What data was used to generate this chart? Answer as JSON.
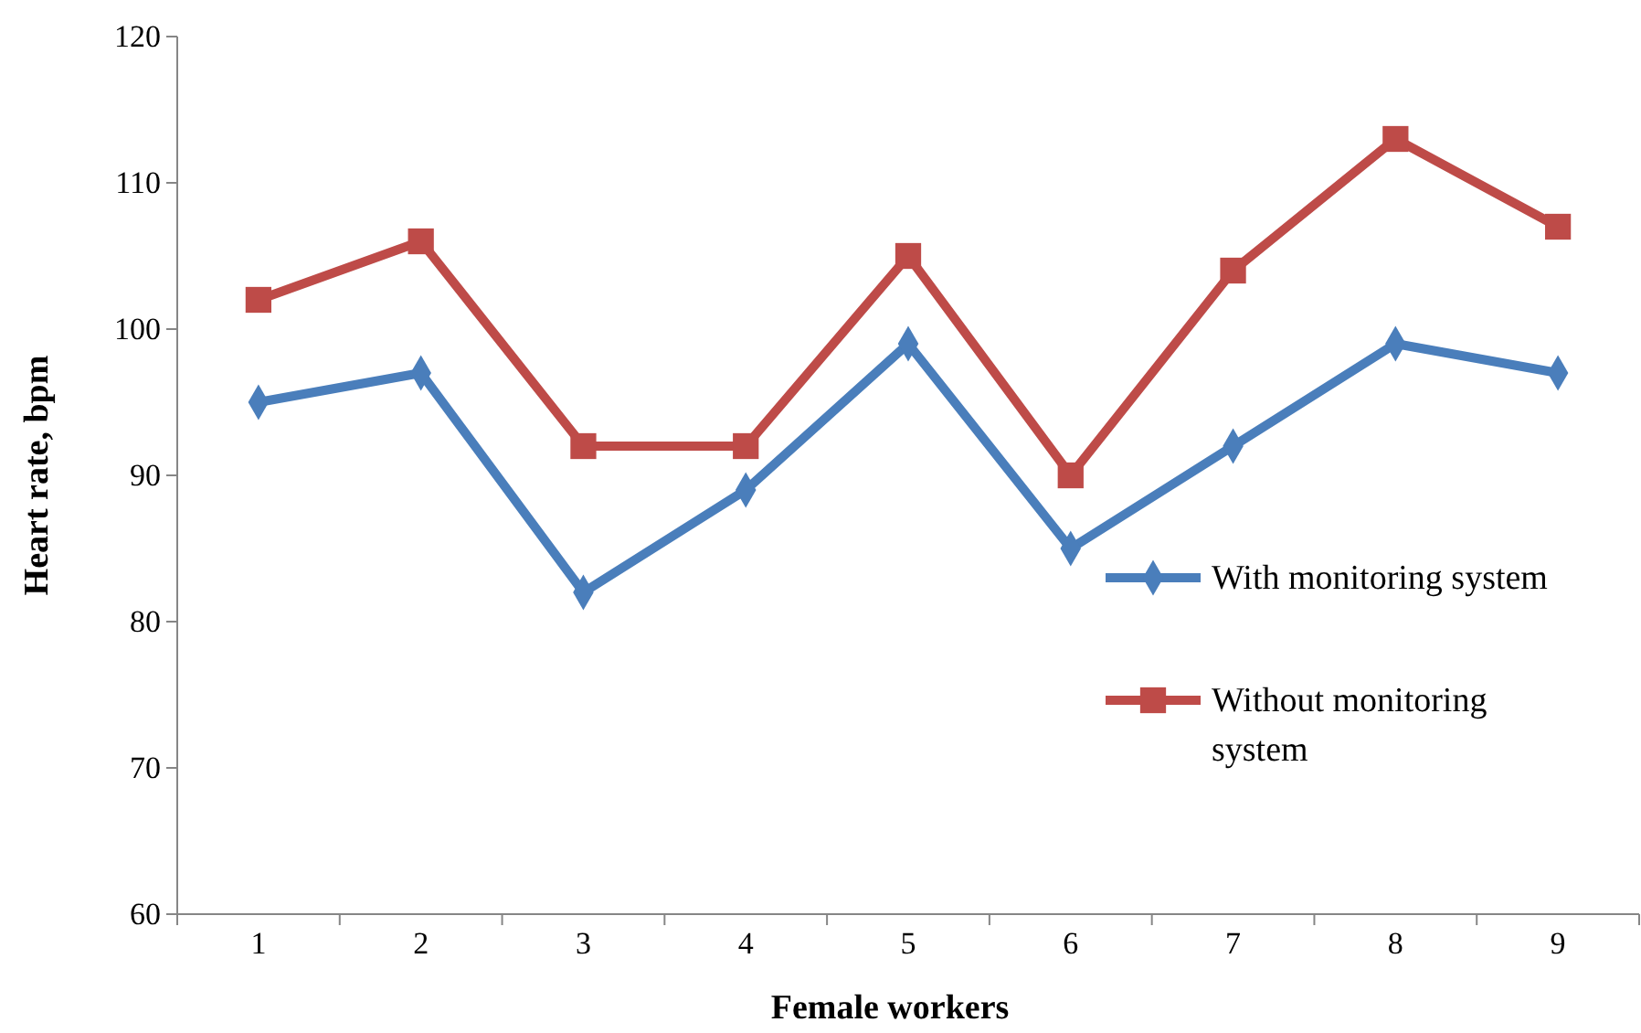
{
  "chart_data": {
    "type": "line",
    "xlabel": "Female workers",
    "ylabel": "Heart rate, bpm",
    "categories": [
      "1",
      "2",
      "3",
      "4",
      "5",
      "6",
      "7",
      "8",
      "9"
    ],
    "series": [
      {
        "name": "With monitoring system",
        "color": "#4a7ebb",
        "marker": "diamond",
        "values": [
          95,
          97,
          82,
          89,
          99,
          85,
          92,
          99,
          97
        ]
      },
      {
        "name": "Without monitoring system",
        "color": "#be4b48",
        "marker": "square",
        "values": [
          102,
          106,
          92,
          92,
          105,
          90,
          104,
          113,
          107
        ]
      }
    ],
    "ylim": [
      60,
      120
    ],
    "yticks": [
      60,
      70,
      80,
      90,
      100,
      110,
      120
    ],
    "grid": false,
    "legend": "right",
    "line_style": "solid"
  }
}
